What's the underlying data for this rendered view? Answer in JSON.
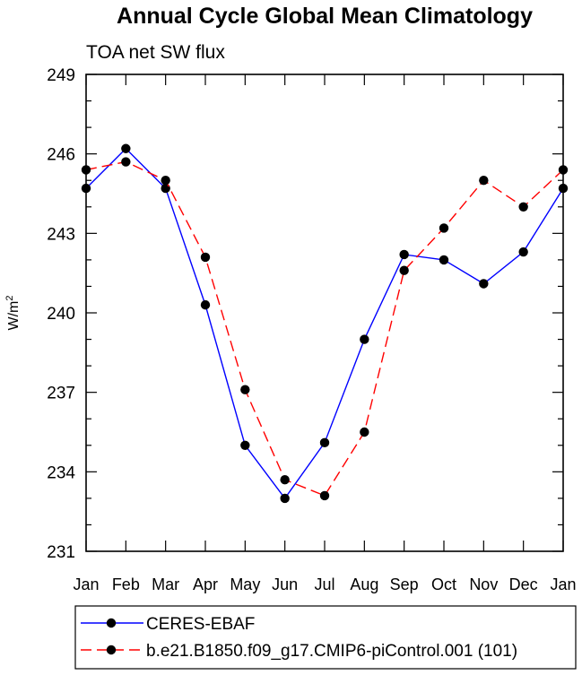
{
  "chart_data": {
    "type": "line",
    "title": "Annual Cycle Global Mean Climatology",
    "subtitle": "TOA net SW flux",
    "xlabel": "",
    "ylabel": "W/m",
    "ylabel_superscript": "2",
    "categories": [
      "Jan",
      "Feb",
      "Mar",
      "Apr",
      "May",
      "Jun",
      "Jul",
      "Aug",
      "Sep",
      "Oct",
      "Nov",
      "Dec",
      "Jan"
    ],
    "ylim": [
      231,
      249
    ],
    "yticks": [
      231,
      234,
      237,
      240,
      243,
      246,
      249
    ],
    "grid": false,
    "legend_position": "bottom",
    "series": [
      {
        "name": "CERES-EBAF",
        "color": "#0000ff",
        "dash": "solid",
        "values": [
          244.7,
          246.2,
          244.7,
          240.3,
          235.0,
          233.0,
          235.1,
          239.0,
          242.2,
          242.0,
          241.1,
          242.3,
          244.7
        ]
      },
      {
        "name": "b.e21.B1850.f09_g17.CMIP6-piControl.001 (101)",
        "color": "#ff0000",
        "dash": "dashed",
        "values": [
          245.4,
          245.7,
          245.0,
          242.1,
          237.1,
          233.7,
          233.1,
          235.5,
          241.6,
          243.2,
          245.0,
          244.0,
          245.4
        ]
      }
    ]
  }
}
